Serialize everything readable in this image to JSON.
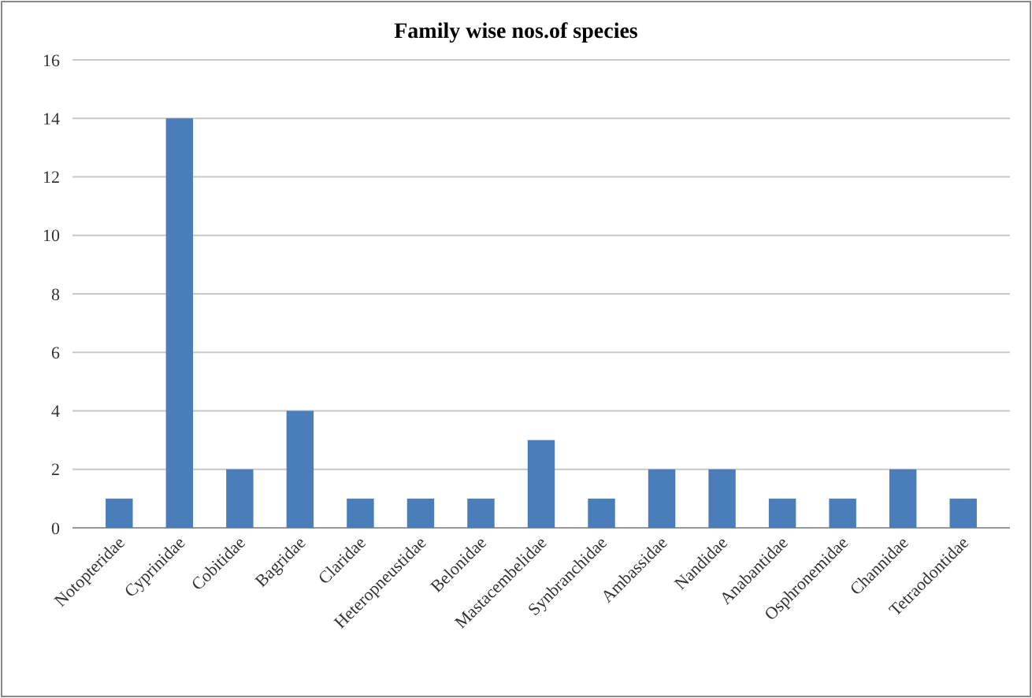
{
  "chart_data": {
    "type": "bar",
    "title": "Family wise nos.of species",
    "categories": [
      "Notopteridae",
      "Cyprinidae",
      "Cobitidae",
      "Bagridae",
      "Claridae",
      "Heteropneustidae",
      "Belonidae",
      "Mastacembelidae",
      "Synbranchidae",
      "Ambassidae",
      "Nandidae",
      "Anabantidae",
      "Osphronemidae",
      "Channidae",
      "Tetraodontidae"
    ],
    "values": [
      1,
      14,
      2,
      4,
      1,
      1,
      1,
      3,
      1,
      2,
      2,
      1,
      1,
      2,
      1
    ],
    "color": "#4a7ebb",
    "ylim": [
      0,
      16
    ],
    "yticks": [
      0,
      2,
      4,
      6,
      8,
      10,
      12,
      14,
      16
    ],
    "grid": "y"
  }
}
